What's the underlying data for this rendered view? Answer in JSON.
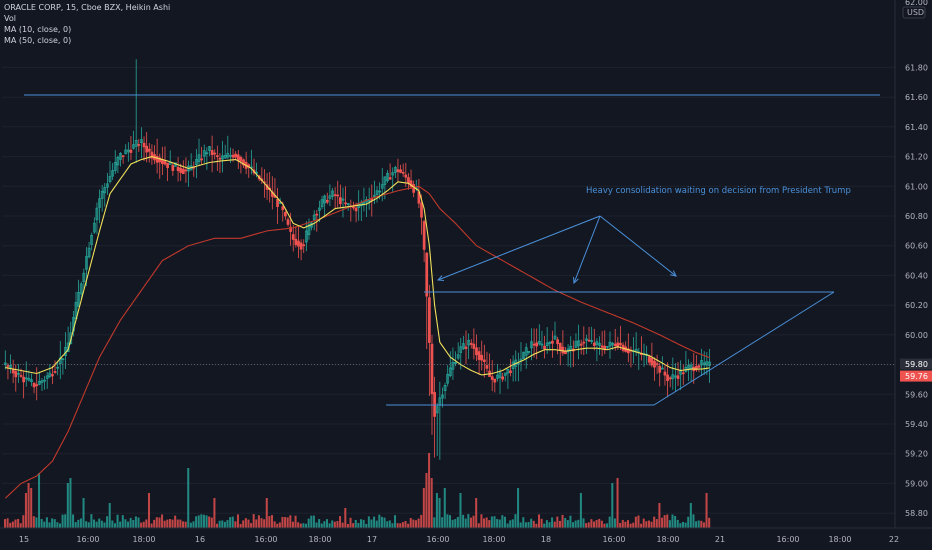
{
  "legend": {
    "title": "ORACLE CORP, 15, Cboe BZX, Heikin Ashi",
    "volume": "Vol",
    "ma10": "MA (10, close, 0)",
    "ma50": "MA (50, close, 0)"
  },
  "colors": {
    "background": "#131722",
    "up": "#26a69a",
    "down": "#ef5350",
    "volume_up": "#26a69a",
    "volume_down": "#ef5350",
    "ma10": "#f0e05a",
    "ma50": "#c0392b",
    "annotation": "#4a90d9",
    "price_label": "#2b2f3a",
    "price_label_red": "#ef5350"
  },
  "chart_data": {
    "type": "candlestick",
    "ylim": [
      58.7,
      62.2
    ],
    "currency_label": "USD",
    "top_tick": "62.00",
    "y_ticks": [
      "61.80",
      "61.60",
      "61.40",
      "61.20",
      "61.00",
      "60.80",
      "60.60",
      "60.40",
      "60.20",
      "60.00",
      "59.80",
      "59.60",
      "59.40",
      "59.20",
      "59.00",
      "58.80"
    ],
    "y_tick_values": [
      61.8,
      61.6,
      61.4,
      61.2,
      61.0,
      60.8,
      60.6,
      60.4,
      60.2,
      60.0,
      59.8,
      59.6,
      59.4,
      59.2,
      59.0,
      58.8
    ],
    "x_ticks": [
      "15",
      "16:00",
      "18:00",
      "16",
      "16:00",
      "18:00",
      "17",
      "16:00",
      "18:00",
      "18",
      "16:00",
      "18:00",
      "21",
      "16:00",
      "18:00",
      "22"
    ],
    "price_labels": [
      {
        "value": 59.8,
        "text": "59.80"
      },
      {
        "value": 59.76,
        "text": "59.76"
      }
    ],
    "close_path": [
      [
        0,
        59.8
      ],
      [
        6,
        59.72
      ],
      [
        12,
        59.66
      ],
      [
        18,
        59.74
      ],
      [
        24,
        59.9
      ],
      [
        30,
        60.4
      ],
      [
        36,
        60.9
      ],
      [
        40,
        61.05
      ],
      [
        44,
        61.2
      ],
      [
        48,
        61.25
      ],
      [
        52,
        61.3
      ],
      [
        56,
        61.22
      ],
      [
        62,
        61.15
      ],
      [
        70,
        61.1
      ],
      [
        78,
        61.25
      ],
      [
        82,
        61.18
      ],
      [
        88,
        61.22
      ],
      [
        94,
        61.12
      ],
      [
        100,
        61.0
      ],
      [
        106,
        60.85
      ],
      [
        110,
        60.65
      ],
      [
        114,
        60.6
      ],
      [
        118,
        60.8
      ],
      [
        122,
        60.9
      ],
      [
        126,
        60.95
      ],
      [
        130,
        60.88
      ],
      [
        134,
        60.85
      ],
      [
        138,
        60.9
      ],
      [
        142,
        60.95
      ],
      [
        146,
        61.05
      ],
      [
        150,
        61.12
      ],
      [
        154,
        61.05
      ],
      [
        158,
        60.95
      ],
      [
        160,
        60.7
      ],
      [
        162,
        60.1
      ],
      [
        164,
        59.45
      ],
      [
        166,
        59.55
      ],
      [
        170,
        59.75
      ],
      [
        174,
        59.9
      ],
      [
        178,
        59.95
      ],
      [
        182,
        59.85
      ],
      [
        186,
        59.7
      ],
      [
        190,
        59.72
      ],
      [
        194,
        59.78
      ],
      [
        198,
        59.85
      ],
      [
        202,
        59.95
      ],
      [
        206,
        59.92
      ],
      [
        210,
        59.98
      ],
      [
        214,
        59.88
      ],
      [
        218,
        59.92
      ],
      [
        222,
        59.97
      ],
      [
        226,
        59.93
      ],
      [
        230,
        59.92
      ],
      [
        234,
        59.95
      ],
      [
        238,
        59.9
      ],
      [
        242,
        59.88
      ],
      [
        246,
        59.85
      ],
      [
        250,
        59.78
      ],
      [
        254,
        59.7
      ],
      [
        258,
        59.74
      ],
      [
        262,
        59.78
      ],
      [
        266,
        59.8
      ],
      [
        270,
        59.79
      ]
    ],
    "ma10_path": [
      [
        0,
        59.78
      ],
      [
        6,
        59.76
      ],
      [
        12,
        59.74
      ],
      [
        18,
        59.78
      ],
      [
        24,
        59.9
      ],
      [
        30,
        60.3
      ],
      [
        36,
        60.7
      ],
      [
        40,
        60.95
      ],
      [
        44,
        61.05
      ],
      [
        48,
        61.15
      ],
      [
        52,
        61.18
      ],
      [
        56,
        61.2
      ],
      [
        62,
        61.17
      ],
      [
        70,
        61.12
      ],
      [
        78,
        61.16
      ],
      [
        82,
        61.17
      ],
      [
        88,
        61.18
      ],
      [
        94,
        61.12
      ],
      [
        100,
        61.0
      ],
      [
        106,
        60.88
      ],
      [
        110,
        60.75
      ],
      [
        114,
        60.72
      ],
      [
        118,
        60.75
      ],
      [
        122,
        60.8
      ],
      [
        126,
        60.85
      ],
      [
        130,
        60.86
      ],
      [
        134,
        60.87
      ],
      [
        138,
        60.88
      ],
      [
        142,
        60.92
      ],
      [
        146,
        60.97
      ],
      [
        150,
        61.03
      ],
      [
        154,
        61.02
      ],
      [
        158,
        60.97
      ],
      [
        160,
        60.85
      ],
      [
        162,
        60.6
      ],
      [
        164,
        60.2
      ],
      [
        166,
        59.95
      ],
      [
        170,
        59.85
      ],
      [
        174,
        59.8
      ],
      [
        178,
        59.76
      ],
      [
        182,
        59.73
      ],
      [
        186,
        59.74
      ],
      [
        190,
        59.76
      ],
      [
        194,
        59.8
      ],
      [
        198,
        59.83
      ],
      [
        202,
        59.87
      ],
      [
        206,
        59.9
      ],
      [
        210,
        59.9
      ],
      [
        214,
        59.89
      ],
      [
        218,
        59.9
      ],
      [
        222,
        59.91
      ],
      [
        226,
        59.91
      ],
      [
        230,
        59.9
      ],
      [
        234,
        59.92
      ],
      [
        238,
        59.9
      ],
      [
        242,
        59.88
      ],
      [
        246,
        59.86
      ],
      [
        250,
        59.82
      ],
      [
        254,
        59.78
      ],
      [
        258,
        59.76
      ],
      [
        262,
        59.77
      ],
      [
        266,
        59.77
      ],
      [
        270,
        59.78
      ]
    ],
    "ma50_path": [
      [
        0,
        58.9
      ],
      [
        6,
        59.0
      ],
      [
        12,
        59.05
      ],
      [
        18,
        59.15
      ],
      [
        24,
        59.35
      ],
      [
        30,
        59.6
      ],
      [
        36,
        59.85
      ],
      [
        44,
        60.1
      ],
      [
        52,
        60.3
      ],
      [
        60,
        60.5
      ],
      [
        70,
        60.6
      ],
      [
        80,
        60.65
      ],
      [
        90,
        60.65
      ],
      [
        100,
        60.7
      ],
      [
        110,
        60.72
      ],
      [
        120,
        60.78
      ],
      [
        130,
        60.85
      ],
      [
        140,
        60.92
      ],
      [
        150,
        60.97
      ],
      [
        158,
        61.0
      ],
      [
        162,
        60.95
      ],
      [
        166,
        60.85
      ],
      [
        172,
        60.75
      ],
      [
        180,
        60.6
      ],
      [
        190,
        60.5
      ],
      [
        200,
        60.4
      ],
      [
        210,
        60.3
      ],
      [
        220,
        60.22
      ],
      [
        230,
        60.15
      ],
      [
        240,
        60.08
      ],
      [
        250,
        60.0
      ],
      [
        258,
        59.93
      ],
      [
        264,
        59.88
      ],
      [
        270,
        59.84
      ]
    ],
    "annotations": [
      {
        "text": "Heavy consolidation waiting on decision from President Trump"
      }
    ]
  }
}
